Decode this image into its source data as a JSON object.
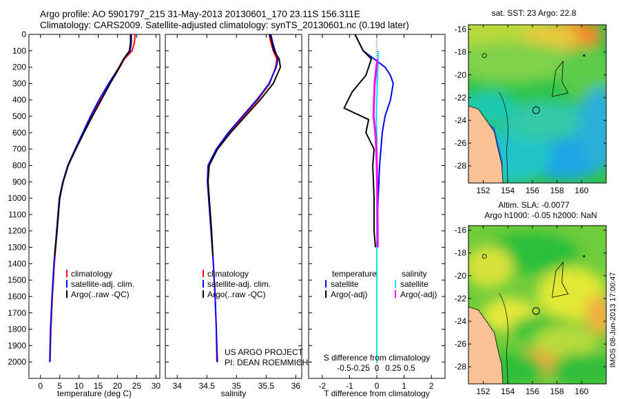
{
  "header": {
    "line1": "Argo profile: AO 5901797_215 31-May-2013 20130601_170 23.11S 156.311E",
    "line2": "Climatology: CARS2009. Satellite-adjusted climatology: synTS_20130601.nc (0.19d later)"
  },
  "chart_data": [
    {
      "type": "line",
      "name": "temperature",
      "xlabel": "temperature (deg C)",
      "ylabel": "",
      "xlim": [
        -3,
        31
      ],
      "ylim": [
        2100,
        0
      ],
      "xticks": [
        0,
        5,
        10,
        15,
        20,
        25,
        30
      ],
      "yticks": [
        0,
        100,
        200,
        300,
        400,
        500,
        600,
        700,
        800,
        900,
        1000,
        1100,
        1200,
        1300,
        1400,
        1500,
        1600,
        1700,
        1800,
        1900,
        2000
      ],
      "series": [
        {
          "name": "climatology",
          "color": "#ff0000",
          "values": [
            [
              24.6,
              0
            ],
            [
              24.4,
              50
            ],
            [
              23.8,
              100
            ],
            [
              21.8,
              150
            ],
            [
              20.6,
              200
            ],
            [
              19.4,
              250
            ],
            [
              18.0,
              300
            ],
            [
              15.5,
              400
            ],
            [
              13.3,
              500
            ],
            [
              11.2,
              600
            ],
            [
              9.1,
              700
            ],
            [
              7.2,
              800
            ],
            [
              5.9,
              900
            ],
            [
              5.0,
              1000
            ],
            [
              4.3,
              1200
            ],
            [
              3.6,
              1400
            ],
            [
              3.1,
              1600
            ],
            [
              2.7,
              1800
            ],
            [
              2.5,
              2000
            ]
          ]
        },
        {
          "name": "satellite-adj. clim.",
          "color": "#0000ff",
          "values": [
            [
              23.6,
              0
            ],
            [
              23.6,
              50
            ],
            [
              23.3,
              100
            ],
            [
              21.6,
              150
            ],
            [
              20.4,
              200
            ],
            [
              19.1,
              250
            ],
            [
              17.7,
              300
            ],
            [
              15.2,
              400
            ],
            [
              13.0,
              500
            ],
            [
              11.0,
              600
            ],
            [
              9.0,
              700
            ],
            [
              7.1,
              800
            ],
            [
              5.8,
              900
            ],
            [
              4.9,
              1000
            ],
            [
              4.2,
              1200
            ],
            [
              3.5,
              1400
            ],
            [
              3.0,
              1600
            ],
            [
              2.6,
              1800
            ],
            [
              2.4,
              2000
            ]
          ]
        },
        {
          "name": "Argo(..raw -QC)",
          "color": "#000000",
          "values": [
            [
              23.4,
              0
            ],
            [
              23.4,
              50
            ],
            [
              23.1,
              100
            ],
            [
              21.6,
              150
            ],
            [
              20.5,
              200
            ],
            [
              19.3,
              250
            ],
            [
              18.1,
              300
            ],
            [
              15.8,
              400
            ],
            [
              13.5,
              500
            ],
            [
              11.3,
              600
            ],
            [
              9.2,
              700
            ],
            [
              7.2,
              800
            ],
            [
              5.9,
              900
            ],
            [
              5.0,
              1000
            ],
            [
              4.3,
              1200
            ],
            [
              3.7,
              1350
            ]
          ]
        }
      ],
      "legend": [
        "climatology",
        "satellite-adj. clim.",
        "Argo(..raw -QC)"
      ],
      "legend_position": "lower-center"
    },
    {
      "type": "line",
      "name": "salinity",
      "xlabel": "salinity",
      "xlim": [
        33.8,
        36.1
      ],
      "ylim": [
        2100,
        0
      ],
      "xticks": [
        34,
        34.5,
        35,
        35.5,
        36
      ],
      "series": [
        {
          "name": "climatology",
          "color": "#ff0000",
          "values": [
            [
              35.55,
              0
            ],
            [
              35.58,
              50
            ],
            [
              35.62,
              100
            ],
            [
              35.68,
              150
            ],
            [
              35.66,
              200
            ],
            [
              35.56,
              300
            ],
            [
              35.36,
              400
            ],
            [
              35.12,
              500
            ],
            [
              34.88,
              600
            ],
            [
              34.67,
              700
            ],
            [
              34.53,
              800
            ],
            [
              34.52,
              900
            ],
            [
              34.54,
              1000
            ],
            [
              34.58,
              1200
            ],
            [
              34.61,
              1400
            ],
            [
              34.64,
              1600
            ],
            [
              34.66,
              1800
            ],
            [
              34.68,
              2000
            ]
          ]
        },
        {
          "name": "satellite-adj. clim.",
          "color": "#0000ff",
          "values": [
            [
              35.58,
              0
            ],
            [
              35.61,
              50
            ],
            [
              35.65,
              100
            ],
            [
              35.7,
              150
            ],
            [
              35.67,
              200
            ],
            [
              35.55,
              300
            ],
            [
              35.34,
              400
            ],
            [
              35.1,
              500
            ],
            [
              34.86,
              600
            ],
            [
              34.66,
              700
            ],
            [
              34.52,
              800
            ],
            [
              34.51,
              900
            ],
            [
              34.53,
              1000
            ],
            [
              34.57,
              1200
            ],
            [
              34.61,
              1400
            ],
            [
              34.64,
              1600
            ],
            [
              34.66,
              1800
            ],
            [
              34.67,
              2000
            ]
          ]
        },
        {
          "name": "Argo(..raw -QC)",
          "color": "#000000",
          "values": [
            [
              35.56,
              0
            ],
            [
              35.6,
              50
            ],
            [
              35.63,
              100
            ],
            [
              35.72,
              150
            ],
            [
              35.74,
              200
            ],
            [
              35.62,
              300
            ],
            [
              35.4,
              400
            ],
            [
              35.15,
              500
            ],
            [
              34.9,
              600
            ],
            [
              34.68,
              700
            ],
            [
              34.54,
              800
            ],
            [
              34.52,
              900
            ],
            [
              34.54,
              1000
            ],
            [
              34.58,
              1200
            ],
            [
              34.6,
              1350
            ]
          ]
        }
      ],
      "legend": [
        "climatology",
        "satellite-adj. clim.",
        "Argo(..raw -QC)"
      ],
      "legend_position": "lower-center",
      "annotations": [
        "US ARGO PROJECT",
        "PI: DEAN ROEMMICH"
      ]
    },
    {
      "type": "line",
      "name": "differences",
      "xlabel": "T difference from climatology",
      "xlabel_top": "S difference from climatology",
      "xlim": [
        -2.5,
        2.5
      ],
      "ylim": [
        2100,
        0
      ],
      "xticks": [
        -2,
        -1,
        0,
        1,
        2
      ],
      "sticks": [
        -0.5,
        -0.25,
        0,
        0.25,
        0.5
      ],
      "series": [
        {
          "name": "temperature satellite",
          "color": "#0000ff",
          "values": [
            [
              -0.8,
              0
            ],
            [
              -0.5,
              100
            ],
            [
              -0.1,
              150
            ],
            [
              0.3,
              200
            ],
            [
              0.5,
              250
            ],
            [
              0.6,
              300
            ],
            [
              0.5,
              400
            ],
            [
              0.3,
              500
            ],
            [
              0.2,
              600
            ],
            [
              0.1,
              800
            ],
            [
              0.05,
              1000
            ],
            [
              0.0,
              1200
            ],
            [
              0.0,
              1400
            ]
          ]
        },
        {
          "name": "temperature Argo(-adj)",
          "color": "#000000",
          "values": [
            [
              -0.8,
              0
            ],
            [
              -0.5,
              100
            ],
            [
              -0.2,
              150
            ],
            [
              -0.4,
              250
            ],
            [
              -0.9,
              350
            ],
            [
              -1.2,
              450
            ],
            [
              -0.3,
              520
            ],
            [
              -0.4,
              600
            ],
            [
              -0.1,
              700
            ],
            [
              -0.15,
              800
            ],
            [
              -0.1,
              1000
            ],
            [
              -0.1,
              1200
            ],
            [
              -0.05,
              1300
            ]
          ]
        },
        {
          "name": "salinity satellite",
          "color": "#00e5ee",
          "values": [
            [
              0.05,
              100
            ],
            [
              0.04,
              200
            ],
            [
              0.02,
              300
            ],
            [
              0.0,
              400
            ],
            [
              -0.02,
              500
            ],
            [
              0.0,
              600
            ],
            [
              0.0,
              800
            ],
            [
              0.0,
              1000
            ],
            [
              0.0,
              1200
            ],
            [
              0.0,
              1400
            ],
            [
              0.0,
              1600
            ],
            [
              0.0,
              1800
            ],
            [
              0.0,
              2000
            ]
          ]
        },
        {
          "name": "salinity Argo(-adj)",
          "color": "#ff00ff",
          "values": [
            [
              0.02,
              150
            ],
            [
              -0.08,
              300
            ],
            [
              -0.1,
              400
            ],
            [
              -0.12,
              500
            ],
            [
              -0.05,
              600
            ],
            [
              -0.02,
              700
            ],
            [
              0.0,
              800
            ],
            [
              0.02,
              1000
            ],
            [
              0.03,
              1200
            ],
            [
              0.03,
              1300
            ]
          ]
        }
      ],
      "legend": {
        "temperature_title": "temperature",
        "salinity_title": "salinity",
        "items": [
          "satellite",
          "Argo(-adj)",
          "satellite",
          "Argo(-adj)"
        ]
      },
      "legend_position": "lower-center"
    },
    {
      "type": "heatmap",
      "name": "sst-map",
      "title": "sat. SST: 23 Argo: 22.8",
      "xticks": [
        152,
        154,
        156,
        158,
        160
      ],
      "yticks": [
        -16,
        -18,
        -20,
        -22,
        -24,
        -26,
        -28
      ],
      "xlim": [
        150.8,
        162
      ],
      "ylim": [
        -29.5,
        -15.6
      ],
      "argo_position": [
        156.3,
        -23.1
      ]
    },
    {
      "type": "heatmap",
      "name": "sla-map",
      "title": "Altim. SLA: -0.0077",
      "subtitle": "Argo h1000: -0.05 h2000: NaN",
      "xticks": [
        152,
        154,
        156,
        158,
        160
      ],
      "yticks": [
        -16,
        -18,
        -20,
        -22,
        -24,
        -26,
        -28
      ],
      "xlim": [
        150.8,
        162
      ],
      "ylim": [
        -29.5,
        -15.6
      ],
      "argo_position": [
        156.3,
        -23.1
      ]
    }
  ],
  "sidebar_stamp": "IMOS 08-Jun-2013 17:00:47"
}
